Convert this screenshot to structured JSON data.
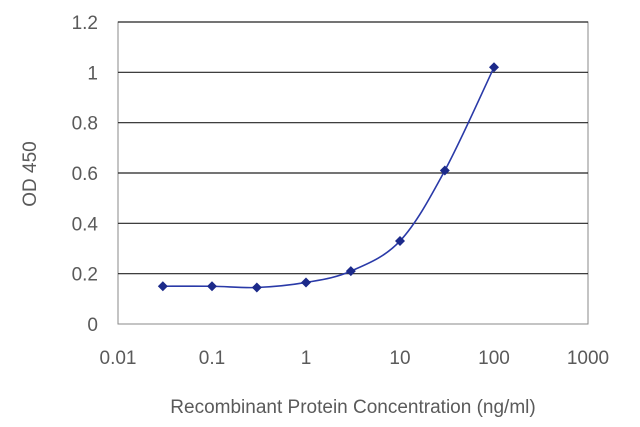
{
  "chart_data": {
    "type": "scatter",
    "xscale": "log",
    "xlim": [
      0.01,
      1000
    ],
    "ylim": [
      0,
      1.2
    ],
    "xticks": [
      "0.01",
      "0.1",
      "1",
      "10",
      "100",
      "1000"
    ],
    "yticks": [
      "0",
      "0.2",
      "0.4",
      "0.6",
      "0.8",
      "1",
      "1.2"
    ],
    "xlabel": "Recombinant Protein Concentration (ng/ml)",
    "ylabel": "OD 450",
    "grid": "horizontal",
    "series": [
      {
        "x": [
          0.03,
          0.1,
          0.3,
          1,
          3,
          10,
          30,
          100
        ],
        "y": [
          0.15,
          0.15,
          0.145,
          0.165,
          0.21,
          0.33,
          0.61,
          1.02
        ]
      }
    ],
    "colors": {
      "series": "#1c2a8a",
      "grid": "#222222"
    }
  }
}
